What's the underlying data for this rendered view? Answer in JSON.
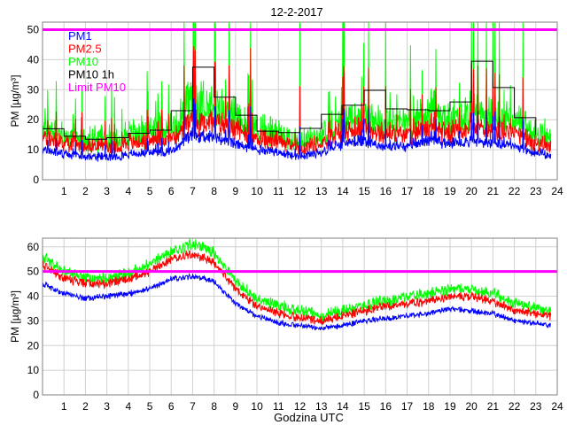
{
  "title": "12-2-2017",
  "colors": {
    "PM1": "#0000ff",
    "PM2.5": "#ff0000",
    "PM10": "#00ff00",
    "PM10 1h": "#000000",
    "Limit PM10": "#ff00ff",
    "grid": "#d0d0d0"
  },
  "chart_data": [
    {
      "type": "line",
      "ylabel": "PM [µg/m³]",
      "xlabel": "",
      "xlim": [
        0,
        24
      ],
      "ylim": [
        0,
        52.5
      ],
      "xticks": [
        "1",
        "2",
        "3",
        "4",
        "5",
        "6",
        "7",
        "8",
        "9",
        "10",
        "11",
        "12",
        "13",
        "14",
        "15",
        "16",
        "17",
        "18",
        "19",
        "20",
        "21",
        "22",
        "23",
        "24"
      ],
      "yticks": [
        "0",
        "10",
        "20",
        "30",
        "40",
        "50"
      ],
      "grid": true,
      "legend_position": "top-left",
      "legend": [
        "PM1",
        "PM2.5",
        "PM10",
        "PM10 1h",
        "Limit PM10"
      ],
      "limit": 50,
      "x_hours": [
        0,
        1,
        2,
        3,
        4,
        5,
        6,
        7,
        8,
        9,
        10,
        11,
        12,
        13,
        14,
        15,
        16,
        17,
        18,
        19,
        20,
        21,
        22,
        23,
        23.7
      ],
      "series": [
        {
          "name": "PM1",
          "values": [
            10,
            8.5,
            8,
            7.5,
            8.5,
            9,
            9.5,
            15,
            14,
            12,
            10,
            9,
            8,
            9,
            12,
            13,
            11,
            11,
            13,
            12,
            13,
            12,
            11,
            9,
            8
          ]
        },
        {
          "name": "PM2.5",
          "values": [
            14.5,
            12,
            12,
            11,
            12.5,
            13,
            14,
            20,
            19,
            17,
            14,
            13,
            11,
            12,
            16,
            17,
            15,
            15,
            17,
            16,
            18,
            16,
            15,
            12,
            11
          ]
        },
        {
          "name": "PM10",
          "values": [
            18,
            14.5,
            14,
            14,
            15.5,
            16.5,
            17,
            26,
            24,
            21,
            17,
            15,
            13,
            15,
            20,
            21,
            19,
            19,
            21,
            20,
            23,
            21,
            19,
            15,
            14
          ]
        }
      ],
      "pm10_spikes_hours": [
        6.6,
        7.05,
        7.12,
        8.05,
        8.7,
        9.7,
        12.0,
        14.0,
        14.05,
        15.2,
        16.0,
        20.0,
        20.1,
        20.3,
        20.7,
        21.0,
        21.1,
        21.3,
        22.4
      ],
      "hourly_pm10": [
        17,
        14.5,
        13.5,
        14,
        15.5,
        16.5,
        23,
        37.5,
        27.5,
        21.5,
        16.2,
        15.7,
        17.1,
        21.8,
        24.8,
        29.8,
        23.6,
        23.3,
        23.0,
        25.9,
        39.5,
        30.7,
        20.7
      ]
    },
    {
      "type": "line",
      "ylabel": "PM [µg/m³]",
      "xlabel": "Godzina UTC",
      "xlim": [
        0,
        24
      ],
      "ylim": [
        0,
        63.5
      ],
      "xticks": [
        "1",
        "2",
        "3",
        "4",
        "5",
        "6",
        "7",
        "8",
        "9",
        "10",
        "11",
        "12",
        "13",
        "14",
        "15",
        "16",
        "17",
        "18",
        "19",
        "20",
        "21",
        "22",
        "23",
        "24"
      ],
      "yticks": [
        "0",
        "10",
        "20",
        "30",
        "40",
        "50",
        "60"
      ],
      "grid": true,
      "limit": 50,
      "x_hours": [
        0,
        1,
        2,
        3,
        4,
        5,
        6,
        7,
        8,
        9,
        10,
        11,
        12,
        13,
        14,
        15,
        16,
        17,
        18,
        19,
        20,
        21,
        22,
        23,
        23.7
      ],
      "series": [
        {
          "name": "PM1",
          "values": [
            45,
            41,
            39,
            40,
            41,
            43,
            47,
            48,
            46,
            37,
            32,
            29,
            28,
            27,
            28,
            30,
            31,
            32,
            33,
            35,
            34,
            33,
            30,
            29,
            28
          ]
        },
        {
          "name": "PM2.5",
          "values": [
            53,
            47,
            45,
            45,
            47,
            50,
            55,
            57,
            54,
            43,
            36,
            33,
            31,
            30,
            32,
            34,
            36,
            37,
            38,
            40,
            40,
            38,
            34,
            33,
            32
          ]
        },
        {
          "name": "PM10",
          "values": [
            56,
            50,
            47,
            47,
            49,
            53,
            58,
            61,
            58,
            46,
            39,
            36,
            34,
            32,
            34,
            36,
            38,
            40,
            41,
            43,
            43,
            41,
            37,
            35,
            34
          ]
        }
      ]
    }
  ]
}
